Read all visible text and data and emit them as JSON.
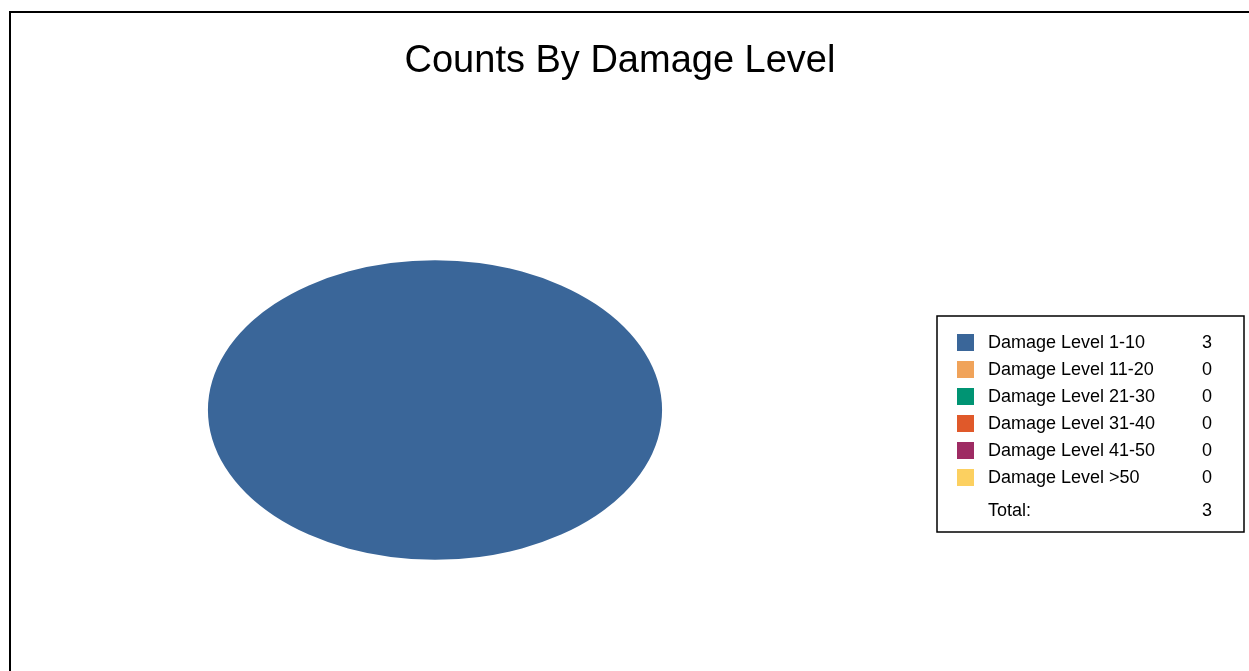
{
  "chart_data": {
    "type": "pie",
    "title": "Counts By Damage Level",
    "categories": [
      "Damage Level 1-10",
      "Damage Level 11-20",
      "Damage Level 21-30",
      "Damage Level 31-40",
      "Damage Level 41-50",
      "Damage Level >50"
    ],
    "values": [
      3,
      0,
      0,
      0,
      0,
      0
    ],
    "colors": [
      "#3a6699",
      "#f0a35a",
      "#009473",
      "#e0592a",
      "#9e2b63",
      "#fcd060"
    ],
    "legend": "right",
    "value_labels": [
      "3",
      "0",
      "0",
      "0",
      "0",
      "0"
    ],
    "annotations": [
      "Total:",
      "3"
    ]
  }
}
